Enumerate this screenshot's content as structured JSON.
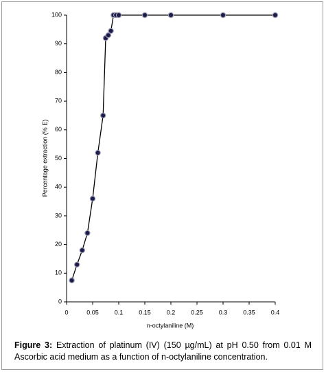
{
  "chart_data": {
    "type": "line",
    "x_label": "n-octylaniline (M)",
    "y_label": "Percentage extraction (% E)",
    "x": [
      0.01,
      0.02,
      0.03,
      0.04,
      0.05,
      0.06,
      0.07,
      0.075,
      0.08,
      0.085,
      0.09,
      0.095,
      0.1,
      0.15,
      0.2,
      0.3,
      0.4
    ],
    "values": [
      7.5,
      13,
      18,
      24,
      36,
      52,
      65,
      92,
      93,
      94.5,
      100,
      100,
      100,
      100,
      100,
      100,
      100
    ],
    "color": "#000000",
    "marker_color": "#1c1c4a",
    "xlim": [
      0,
      0.4
    ],
    "xticks": [
      0,
      0.05,
      0.1,
      0.15,
      0.2,
      0.25,
      0.3,
      0.35,
      0.4
    ],
    "ylim": [
      0,
      100
    ],
    "yticks": [
      0,
      10,
      20,
      30,
      40,
      50,
      60,
      70,
      80,
      90,
      100
    ],
    "grid": false,
    "caption_label": "Figure 3:",
    "caption_text": "Extraction of platinum (IV) (150 µg/mL) at pH 0.50 from 0.01 M Ascorbic acid medium as a function of n-octylaniline concentration."
  }
}
